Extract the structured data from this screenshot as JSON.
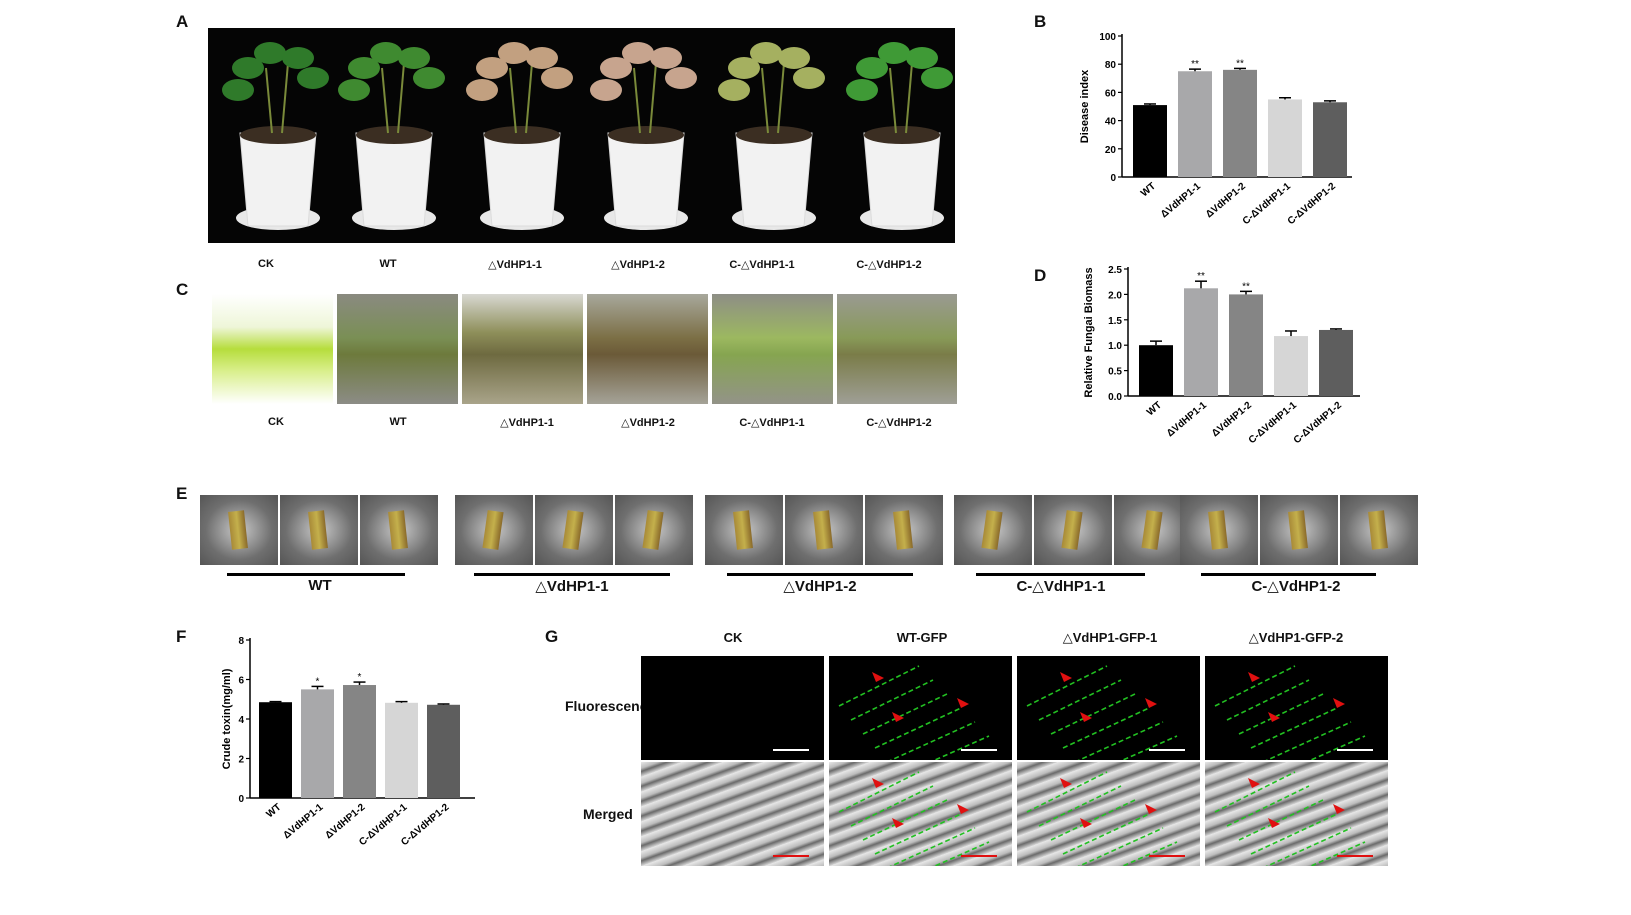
{
  "panels": {
    "A": "A",
    "B": "B",
    "C": "C",
    "D": "D",
    "E": "E",
    "F": "F",
    "G": "G"
  },
  "panel_a_labels": [
    "CK",
    "WT",
    "△VdHP1-1",
    "△VdHP1-2",
    "C-△VdHP1-1",
    "C-△VdHP1-2"
  ],
  "panel_c_labels": [
    "CK",
    "WT",
    "△VdHP1-1",
    "△VdHP1-2",
    "C-△VdHP1-1",
    "C-△VdHP1-2"
  ],
  "panel_e_labels": [
    "WT",
    "△VdHP1-1",
    "△VdHP1-2",
    "C-△VdHP1-1",
    "C-△VdHP1-2"
  ],
  "panel_g": {
    "columns": [
      "CK",
      "WT-GFP",
      "△VdHP1-GFP-1",
      "△VdHP1-GFP-2"
    ],
    "rows": [
      "Fluorescence",
      "Merged"
    ]
  },
  "colors": {
    "wt": "#000000",
    "dvd1": "#a8a8aa",
    "dvd2": "#858585",
    "cdvd1": "#d6d6d6",
    "cdvd2": "#5e5e5e",
    "arrow": "#e01010",
    "gfp": "#22c022"
  },
  "chart_data": [
    {
      "id": "B",
      "type": "bar",
      "categories": [
        "WT",
        "ΔVdHP1-1",
        "ΔVdHP1-2",
        "C-ΔVdHP1-1",
        "C-ΔVdHP1-2"
      ],
      "values": [
        51,
        75,
        76,
        55,
        53
      ],
      "errors": [
        0.8,
        1.5,
        1.0,
        1.2,
        1.0
      ],
      "significance": [
        "",
        "**",
        "**",
        "",
        ""
      ],
      "ylabel": "Disease index",
      "ylim": [
        0,
        100
      ],
      "yticks": [
        0,
        20,
        40,
        60,
        80,
        100
      ]
    },
    {
      "id": "D",
      "type": "bar",
      "categories": [
        "WT",
        "ΔVdHP1-1",
        "ΔVdHP1-2",
        "C-ΔVdHP1-1",
        "C-ΔVdHP1-2"
      ],
      "values": [
        1.0,
        2.12,
        2.0,
        1.18,
        1.3
      ],
      "errors": [
        0.08,
        0.14,
        0.06,
        0.1,
        0.02
      ],
      "significance": [
        "",
        "**",
        "**",
        "",
        ""
      ],
      "ylabel": "Relative Fungai Biomass",
      "ylim": [
        0,
        2.5
      ],
      "yticks": [
        "0.0",
        "0.5",
        "1.0",
        "1.5",
        "2.0",
        "2.5"
      ]
    },
    {
      "id": "F",
      "type": "bar",
      "categories": [
        "WT",
        "ΔVdHP1-1",
        "ΔVdHP1-2",
        "C-ΔVdHP1-1",
        "C-ΔVdHP1-2"
      ],
      "values": [
        4.85,
        5.5,
        5.72,
        4.82,
        4.72
      ],
      "errors": [
        0.03,
        0.15,
        0.15,
        0.06,
        0.04
      ],
      "significance": [
        "",
        "*",
        "*",
        "",
        ""
      ],
      "ylabel": "Crude toxin(mg/ml)",
      "ylim": [
        0,
        8
      ],
      "yticks": [
        0,
        2,
        4,
        6,
        8
      ]
    }
  ]
}
